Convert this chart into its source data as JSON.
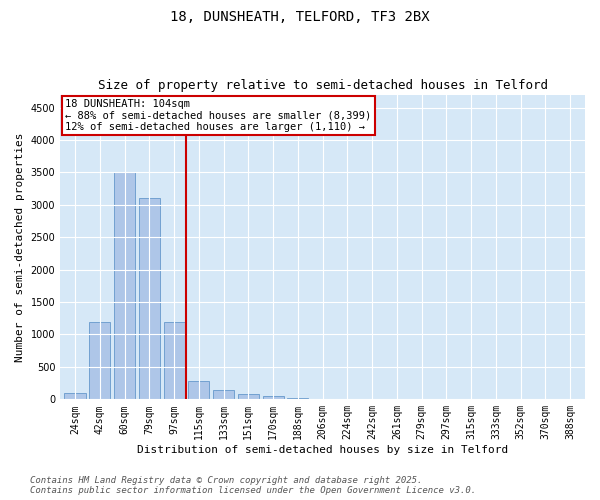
{
  "title1": "18, DUNSHEATH, TELFORD, TF3 2BX",
  "title2": "Size of property relative to semi-detached houses in Telford",
  "xlabel": "Distribution of semi-detached houses by size in Telford",
  "ylabel": "Number of semi-detached properties",
  "categories": [
    "24sqm",
    "42sqm",
    "60sqm",
    "79sqm",
    "97sqm",
    "115sqm",
    "133sqm",
    "151sqm",
    "170sqm",
    "188sqm",
    "206sqm",
    "224sqm",
    "242sqm",
    "261sqm",
    "279sqm",
    "297sqm",
    "315sqm",
    "333sqm",
    "352sqm",
    "370sqm",
    "388sqm"
  ],
  "values": [
    100,
    1200,
    3500,
    3100,
    1200,
    280,
    150,
    80,
    50,
    20,
    5,
    0,
    0,
    0,
    0,
    0,
    0,
    0,
    0,
    0,
    0
  ],
  "bar_color": "#aec6e8",
  "bar_edge_color": "#6699cc",
  "vline_x_idx": 4.5,
  "vline_color": "#cc0000",
  "ylim_max": 4700,
  "ytick_max": 4500,
  "ytick_step": 500,
  "annotation_line1": "18 DUNSHEATH: 104sqm",
  "annotation_line2": "← 88% of semi-detached houses are smaller (8,399)",
  "annotation_line3": "12% of semi-detached houses are larger (1,110) →",
  "annotation_box_color": "#cc0000",
  "footer1": "Contains HM Land Registry data © Crown copyright and database right 2025.",
  "footer2": "Contains public sector information licensed under the Open Government Licence v3.0.",
  "plot_bg_color": "#d6e8f7",
  "fig_bg_color": "#ffffff",
  "grid_color": "#ffffff",
  "title1_fontsize": 10,
  "title2_fontsize": 9,
  "ylabel_fontsize": 8,
  "xlabel_fontsize": 8,
  "tick_fontsize": 7,
  "annotation_fontsize": 7.5,
  "footer_fontsize": 6.5
}
